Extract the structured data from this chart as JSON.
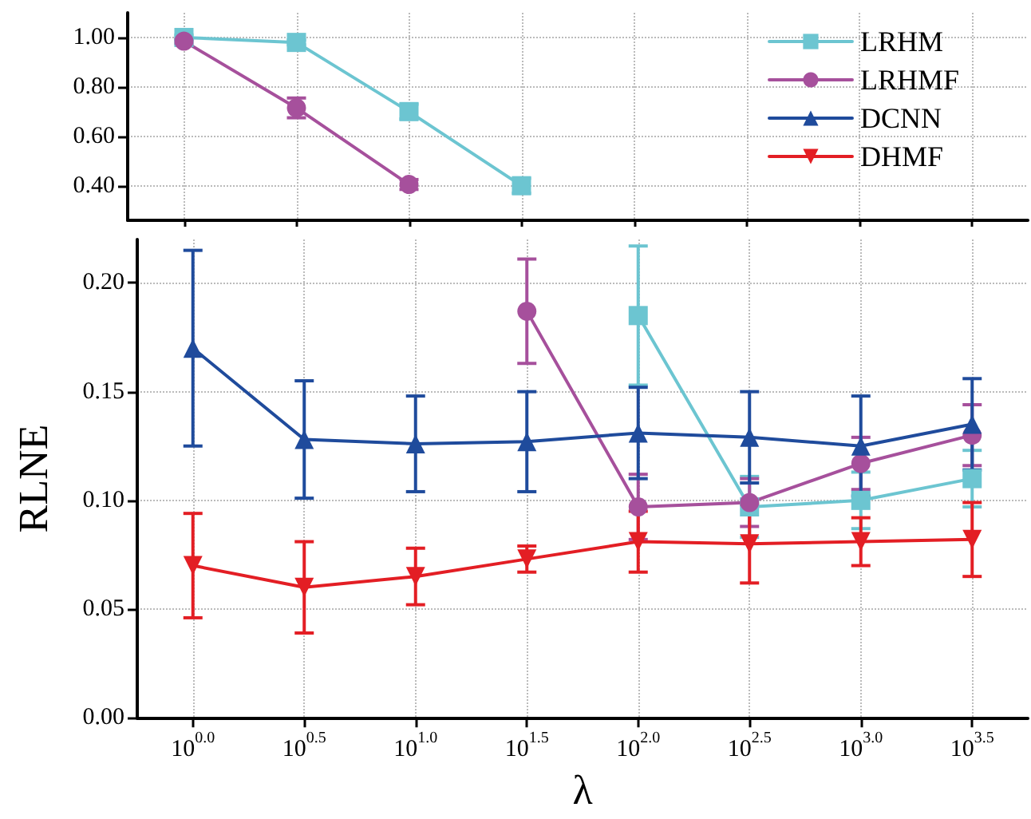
{
  "chart_data": [
    {
      "type": "line",
      "categories": [
        null,
        null,
        null,
        null,
        null,
        null,
        null,
        null
      ],
      "ylim": [
        0.26,
        1.1
      ],
      "yticks": [
        {
          "value": 0.4,
          "label": "0.40"
        },
        {
          "value": 0.6,
          "label": "0.60"
        },
        {
          "value": 0.8,
          "label": "0.80"
        },
        {
          "value": 1.0,
          "label": "1.00"
        }
      ],
      "grid": true,
      "legend": "top right",
      "tick_labels": "y",
      "line_style": "solid",
      "series": [
        {
          "name": "LRHM",
          "color": "#6cc5d1",
          "marker": "square",
          "values": [
            1.0,
            0.98,
            0.7,
            0.4,
            null,
            null,
            null,
            null
          ],
          "errors": [
            0.01,
            0.01,
            0.03,
            0.03,
            null,
            null,
            null,
            null
          ]
        },
        {
          "name": "LRHMF",
          "color": "#a6509c",
          "marker": "circle",
          "values": [
            0.985,
            0.715,
            0.405,
            null,
            null,
            null,
            null,
            null
          ],
          "errors": [
            0.01,
            0.04,
            0.02,
            null,
            null,
            null,
            null,
            null
          ]
        },
        {
          "name": "DCNN",
          "color": "#1f4b9c",
          "marker": "triangle",
          "values": [
            null,
            null,
            null,
            null,
            null,
            null,
            null,
            null
          ]
        },
        {
          "name": "DHMF",
          "color": "#e31e24",
          "marker": "triangle-down",
          "values": [
            null,
            null,
            null,
            null,
            null,
            null,
            null,
            null
          ]
        }
      ]
    },
    {
      "type": "line",
      "categories": [
        "10$^{0.0}$",
        "10$^{0.5}$",
        "10$^{1.0}$",
        "10$^{1.5}$",
        "10$^{2.0}$",
        "10$^{2.5}$",
        "10$^{3.0}$",
        "10$^{3.5}$"
      ],
      "xlabel": "λ",
      "ylabel": "RLNE",
      "ylim": [
        0,
        0.22
      ],
      "yticks": [
        {
          "value": 0,
          "label": "0.00"
        },
        {
          "value": 0.05,
          "label": "0.05"
        },
        {
          "value": 0.1,
          "label": "0.10"
        },
        {
          "value": 0.15,
          "label": "0.15"
        },
        {
          "value": 0.2,
          "label": "0.20"
        }
      ],
      "grid": true,
      "line_style": "solid",
      "series": [
        {
          "color": "#6cc5d1",
          "marker": "square",
          "values": [
            null,
            null,
            null,
            null,
            0.185,
            0.097,
            0.1,
            0.11
          ],
          "errors": [
            null,
            null,
            null,
            null,
            0.032,
            0.014,
            0.013,
            0.013
          ]
        },
        {
          "color": "#a6509c",
          "marker": "circle",
          "values": [
            null,
            null,
            null,
            0.187,
            0.097,
            0.099,
            0.117,
            0.13
          ],
          "errors": [
            null,
            null,
            null,
            0.024,
            0.015,
            0.011,
            0.012,
            0.014
          ]
        },
        {
          "color": "#1f4b9c",
          "marker": "triangle",
          "values": [
            0.17,
            0.128,
            0.126,
            0.127,
            0.131,
            0.129,
            0.125,
            0.135
          ],
          "errors": [
            0.045,
            0.027,
            0.022,
            0.023,
            0.021,
            0.021,
            0.023,
            0.021
          ]
        },
        {
          "color": "#e31e24",
          "marker": "triangle-down",
          "values": [
            0.07,
            0.06,
            0.065,
            0.073,
            0.081,
            0.08,
            0.081,
            0.082
          ],
          "errors": [
            0.024,
            0.021,
            0.013,
            0.006,
            0.014,
            0.018,
            0.011,
            0.017
          ]
        }
      ]
    }
  ]
}
